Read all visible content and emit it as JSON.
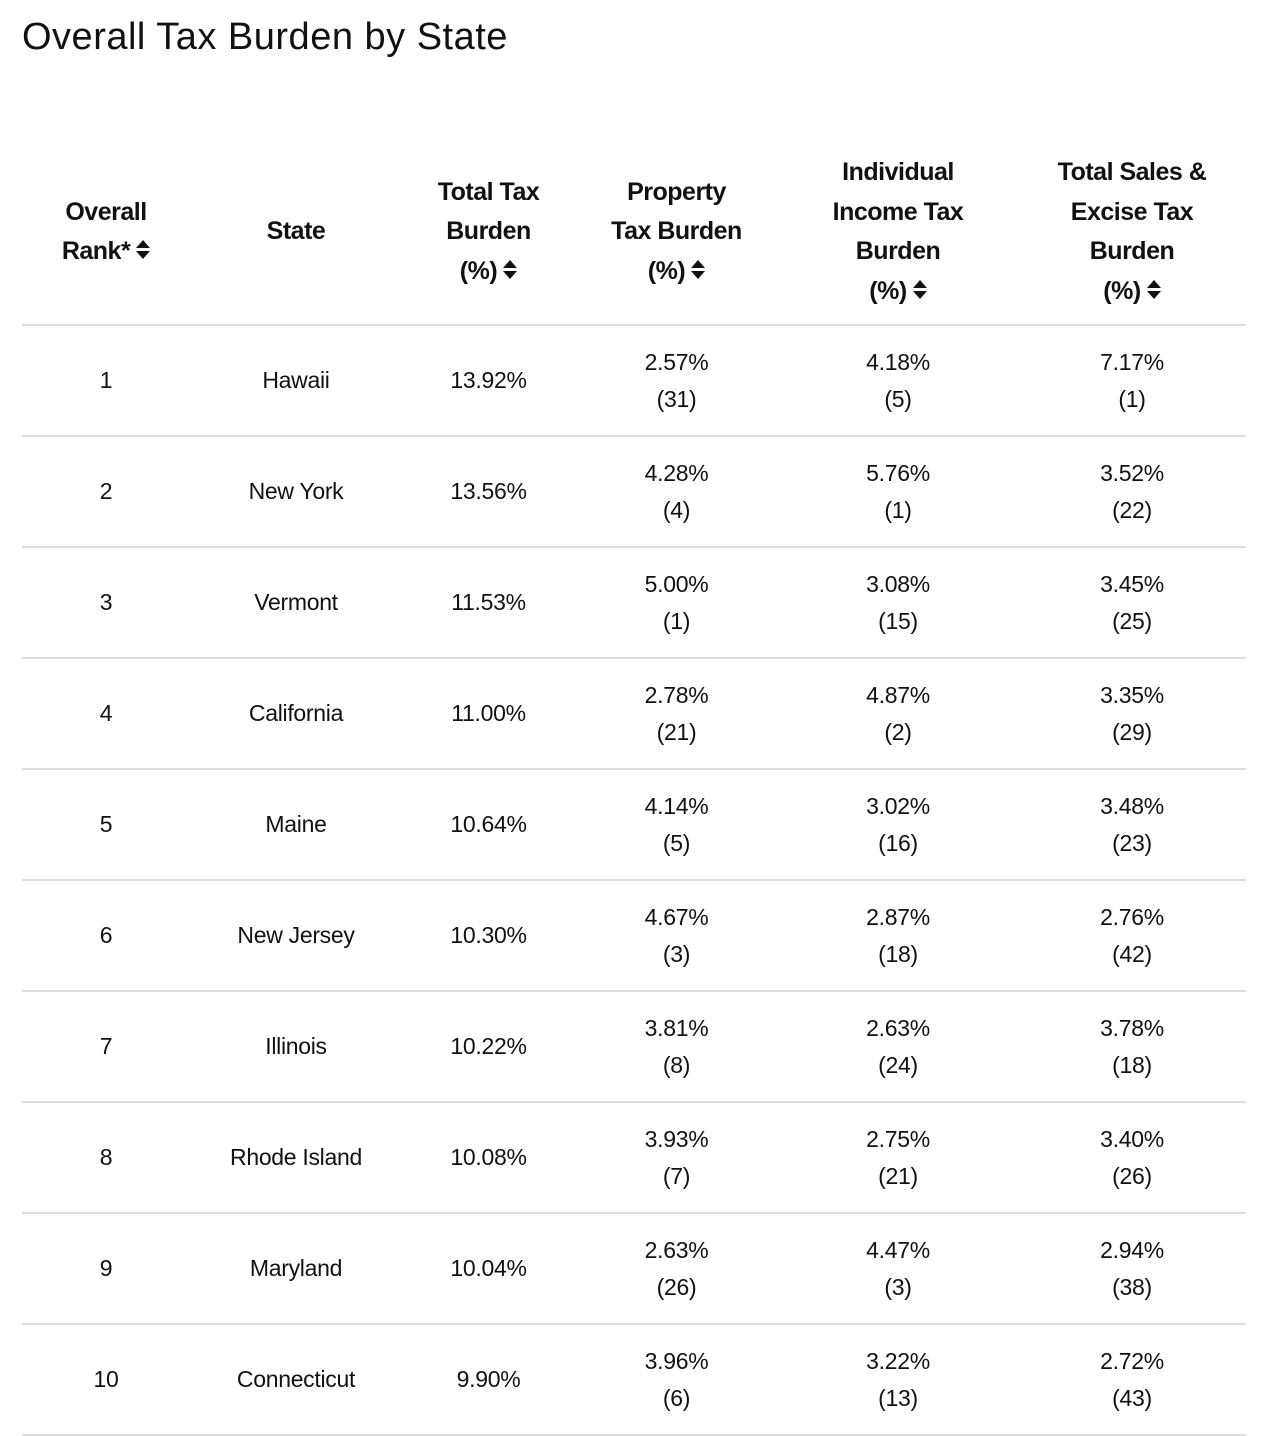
{
  "title": "Overall Tax Burden by State",
  "columns": [
    {
      "lines": [
        "Overall",
        "Rank*"
      ],
      "sortable": true
    },
    {
      "lines": [
        "State"
      ],
      "sortable": false
    },
    {
      "lines": [
        "Total Tax",
        "Burden",
        "(%)"
      ],
      "sortable": true
    },
    {
      "lines": [
        "Property",
        "Tax Burden",
        "(%)"
      ],
      "sortable": true
    },
    {
      "lines": [
        "Individual",
        "Income Tax",
        "Burden",
        "(%)"
      ],
      "sortable": true
    },
    {
      "lines": [
        "Total Sales &",
        "Excise Tax",
        "Burden",
        "(%)"
      ],
      "sortable": true
    }
  ],
  "rows": [
    {
      "rank": "1",
      "state": "Hawaii",
      "total": "13.92%",
      "property": "2.57%",
      "property_rank": "(31)",
      "income": "4.18%",
      "income_rank": "(5)",
      "sales": "7.17%",
      "sales_rank": "(1)"
    },
    {
      "rank": "2",
      "state": "New York",
      "total": "13.56%",
      "property": "4.28%",
      "property_rank": "(4)",
      "income": "5.76%",
      "income_rank": "(1)",
      "sales": "3.52%",
      "sales_rank": "(22)"
    },
    {
      "rank": "3",
      "state": "Vermont",
      "total": "11.53%",
      "property": "5.00%",
      "property_rank": "(1)",
      "income": "3.08%",
      "income_rank": "(15)",
      "sales": "3.45%",
      "sales_rank": "(25)"
    },
    {
      "rank": "4",
      "state": "California",
      "total": "11.00%",
      "property": "2.78%",
      "property_rank": "(21)",
      "income": "4.87%",
      "income_rank": "(2)",
      "sales": "3.35%",
      "sales_rank": "(29)"
    },
    {
      "rank": "5",
      "state": "Maine",
      "total": "10.64%",
      "property": "4.14%",
      "property_rank": "(5)",
      "income": "3.02%",
      "income_rank": "(16)",
      "sales": "3.48%",
      "sales_rank": "(23)"
    },
    {
      "rank": "6",
      "state": "New Jersey",
      "total": "10.30%",
      "property": "4.67%",
      "property_rank": "(3)",
      "income": "2.87%",
      "income_rank": "(18)",
      "sales": "2.76%",
      "sales_rank": "(42)"
    },
    {
      "rank": "7",
      "state": "Illinois",
      "total": "10.22%",
      "property": "3.81%",
      "property_rank": "(8)",
      "income": "2.63%",
      "income_rank": "(24)",
      "sales": "3.78%",
      "sales_rank": "(18)"
    },
    {
      "rank": "8",
      "state": "Rhode Island",
      "total": "10.08%",
      "property": "3.93%",
      "property_rank": "(7)",
      "income": "2.75%",
      "income_rank": "(21)",
      "sales": "3.40%",
      "sales_rank": "(26)"
    },
    {
      "rank": "9",
      "state": "Maryland",
      "total": "10.04%",
      "property": "2.63%",
      "property_rank": "(26)",
      "income": "4.47%",
      "income_rank": "(3)",
      "sales": "2.94%",
      "sales_rank": "(38)"
    },
    {
      "rank": "10",
      "state": "Connecticut",
      "total": "9.90%",
      "property": "3.96%",
      "property_rank": "(6)",
      "income": "3.22%",
      "income_rank": "(13)",
      "sales": "2.72%",
      "sales_rank": "(43)"
    }
  ]
}
